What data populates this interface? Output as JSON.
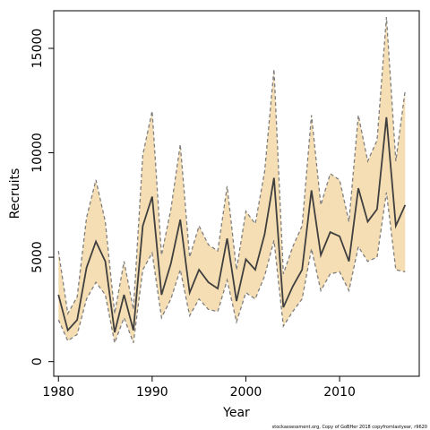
{
  "chart_data": {
    "type": "line",
    "title": "",
    "xlabel": "Year",
    "ylabel": "Recruits",
    "xlim": [
      1979.5,
      2018.5
    ],
    "ylim": [
      -700,
      16800
    ],
    "xticks": [
      1980,
      1990,
      2000,
      2010
    ],
    "yticks": [
      0,
      5000,
      10000,
      15000
    ],
    "grid": false,
    "legend": "none",
    "colors": {
      "band_fill": "#f5deb3",
      "band_edge": "#7f7f7f",
      "line": "#3f3f3f"
    },
    "x": [
      1980,
      1981,
      1982,
      1983,
      1984,
      1985,
      1986,
      1987,
      1988,
      1989,
      1990,
      1991,
      1992,
      1993,
      1994,
      1995,
      1996,
      1997,
      1998,
      1999,
      2000,
      2001,
      2002,
      2003,
      2004,
      2005,
      2006,
      2007,
      2008,
      2009,
      2010,
      2011,
      2012,
      2013,
      2014,
      2015,
      2016,
      2017
    ],
    "series": [
      {
        "role": "estimate",
        "values": [
          3200,
          1500,
          2000,
          4500,
          5750,
          4800,
          1400,
          3200,
          1500,
          6500,
          7900,
          3200,
          4700,
          6800,
          3300,
          4400,
          3800,
          3500,
          5900,
          2900,
          4900,
          4400,
          6100,
          8800,
          2600,
          3600,
          4400,
          8200,
          5100,
          6200,
          6000,
          4800,
          8300,
          6700,
          7300,
          11700,
          6500,
          7500
        ]
      },
      {
        "role": "upper",
        "values": [
          5300,
          2300,
          3100,
          6900,
          8700,
          6700,
          2300,
          4800,
          2500,
          9900,
          12000,
          5100,
          7300,
          10400,
          5000,
          6500,
          5600,
          5300,
          8400,
          4400,
          7200,
          6600,
          9100,
          14000,
          4200,
          5500,
          6500,
          11800,
          7500,
          9000,
          8700,
          6700,
          11800,
          9600,
          10600,
          16500,
          9600,
          13000
        ]
      },
      {
        "role": "lower",
        "values": [
          2000,
          1000,
          1300,
          3000,
          3800,
          3200,
          900,
          2100,
          900,
          4400,
          5200,
          2100,
          3000,
          4400,
          2200,
          3000,
          2500,
          2400,
          3900,
          1900,
          3300,
          3000,
          4100,
          5800,
          1700,
          2400,
          3000,
          5400,
          3400,
          4200,
          4300,
          3400,
          5500,
          4800,
          5000,
          8100,
          4400,
          4300
        ]
      }
    ]
  },
  "axes": {
    "x_tick_labels": [
      "1980",
      "1990",
      "2000",
      "2010"
    ],
    "y_tick_labels": [
      "0",
      "5000",
      "10000",
      "15000"
    ]
  },
  "footer": {
    "note": "stockassessment.org, Copy of GoBHer 2018 copyfromlastyear, r9620"
  }
}
